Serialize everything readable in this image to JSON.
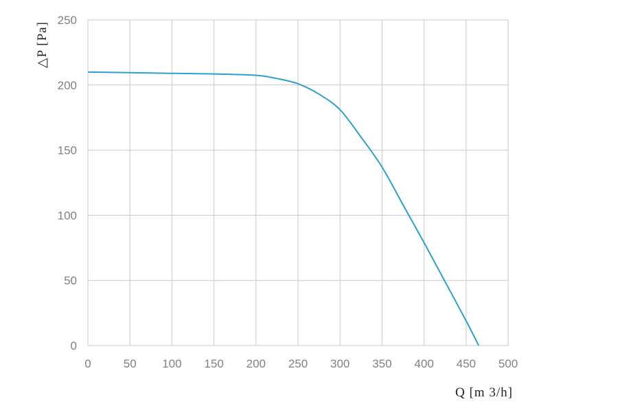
{
  "chart_data": {
    "type": "line",
    "title": "",
    "xlabel": "Q [m 3/h]",
    "ylabel": "△P [Pa]",
    "xlim": [
      0,
      500
    ],
    "ylim": [
      0,
      250
    ],
    "x_ticks": [
      0,
      50,
      100,
      150,
      200,
      250,
      300,
      350,
      400,
      450,
      500
    ],
    "y_ticks": [
      0,
      50,
      100,
      150,
      200,
      250
    ],
    "grid": true,
    "legend": "none",
    "series": [
      {
        "color": "#2a9fd0",
        "x": [
          0,
          50,
          100,
          150,
          200,
          225,
          250,
          275,
          300,
          325,
          350,
          375,
          400,
          425,
          450,
          465
        ],
        "y": [
          210,
          209.5,
          209,
          208.5,
          207.5,
          205,
          201,
          193,
          181,
          160,
          137,
          108,
          79,
          49,
          19,
          0
        ]
      }
    ]
  }
}
